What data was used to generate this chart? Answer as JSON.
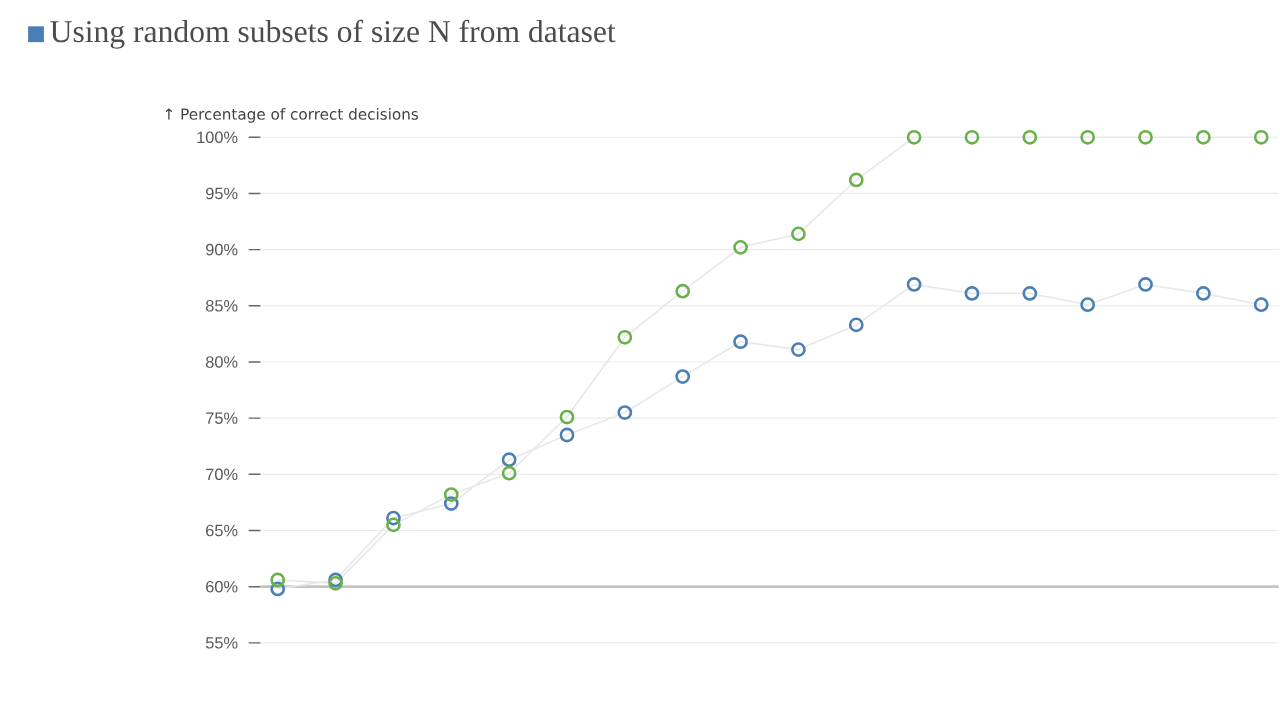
{
  "chart_data": {
    "type": "line",
    "title": "Using random subsets of size N from dataset",
    "ylabel": "↑ Percentage of correct decisions",
    "categories": [
      null,
      null,
      null,
      null,
      null,
      null,
      null,
      null,
      null,
      null,
      null,
      null,
      null,
      null,
      null,
      null,
      null,
      null
    ],
    "series": [
      {
        "color": "#4a7fb5",
        "values": [
          59.8,
          60.6,
          66.1,
          67.4,
          71.3,
          73.5,
          75.5,
          78.7,
          81.8,
          81.1,
          83.3,
          86.9,
          86.1,
          86.1,
          85.1,
          86.9,
          86.1,
          85.1
        ]
      },
      {
        "color": "#6ab04c",
        "values": [
          60.6,
          60.3,
          65.5,
          68.2,
          70.1,
          75.1,
          82.2,
          86.3,
          90.2,
          91.4,
          96.2,
          100,
          100,
          100,
          100,
          100,
          100,
          100
        ]
      }
    ],
    "ylim": [
      55,
      100
    ],
    "yticks": [
      {
        "value": 55,
        "label": "55%"
      },
      {
        "value": 60,
        "label": "60%"
      },
      {
        "value": 65,
        "label": "65%"
      },
      {
        "value": 70,
        "label": "70%"
      },
      {
        "value": 75,
        "label": "75%"
      },
      {
        "value": 80,
        "label": "80%"
      },
      {
        "value": 85,
        "label": "85%"
      },
      {
        "value": 90,
        "label": "90%"
      },
      {
        "value": 95,
        "label": "95%"
      },
      {
        "value": 100,
        "label": "100%"
      }
    ],
    "ref_lines": [
      {
        "axis": "y",
        "value": 60,
        "color": "#c4c4c4"
      }
    ],
    "grid": "y",
    "marker": "circle",
    "line_style": "solid",
    "tick_labels": "y"
  }
}
